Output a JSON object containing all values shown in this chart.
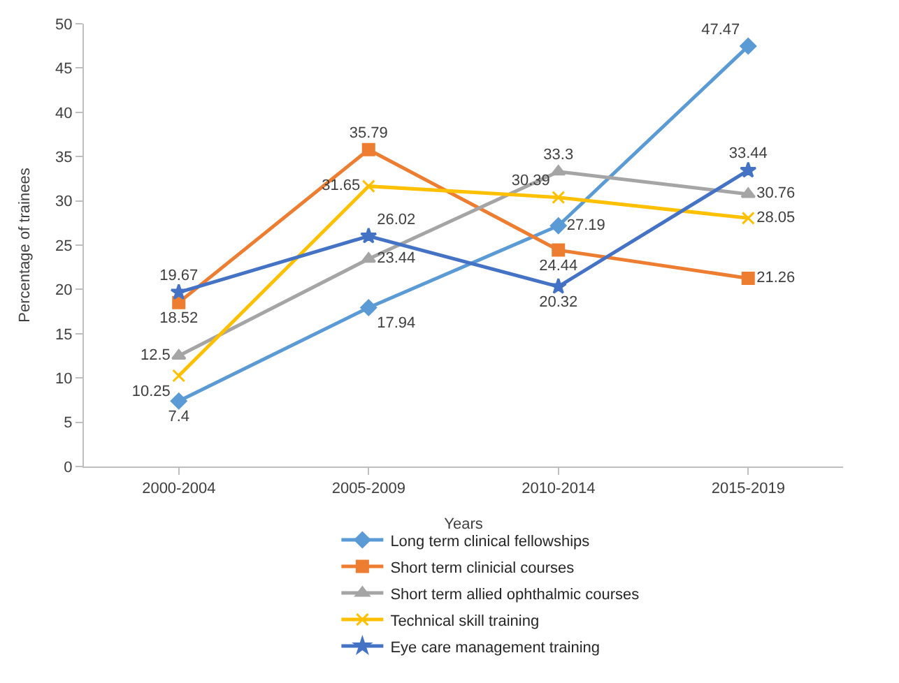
{
  "chart_data": {
    "type": "line",
    "xlabel": "Years",
    "ylabel": "Percentage of trainees",
    "categories": [
      "2000-2004",
      "2005-2009",
      "2010-2014",
      "2015-2019"
    ],
    "series": [
      {
        "name": "Long term clinical fellowships",
        "color": "#5b9bd5",
        "marker": "diamond",
        "values": [
          7.4,
          17.94,
          27.19,
          47.47
        ]
      },
      {
        "name": "Short term clinicial courses",
        "color": "#ed7d31",
        "marker": "square",
        "values": [
          18.52,
          35.79,
          24.44,
          21.26
        ]
      },
      {
        "name": "Short term allied ophthalmic courses",
        "color": "#a5a5a5",
        "marker": "triangle",
        "values": [
          12.5,
          23.44,
          33.3,
          30.76
        ]
      },
      {
        "name": "Technical skill training",
        "color": "#ffc000",
        "marker": "cross",
        "values": [
          10.25,
          31.65,
          30.39,
          28.05
        ]
      },
      {
        "name": "Eye care management training",
        "color": "#4472c4",
        "marker": "star",
        "values": [
          19.67,
          26.02,
          20.32,
          33.44
        ]
      }
    ],
    "ylim": [
      0,
      50
    ],
    "yticks": [
      0,
      5,
      10,
      15,
      20,
      25,
      30,
      35,
      40,
      45,
      50
    ],
    "legend": "bottom",
    "data_labels": true,
    "line_style": "solid"
  }
}
